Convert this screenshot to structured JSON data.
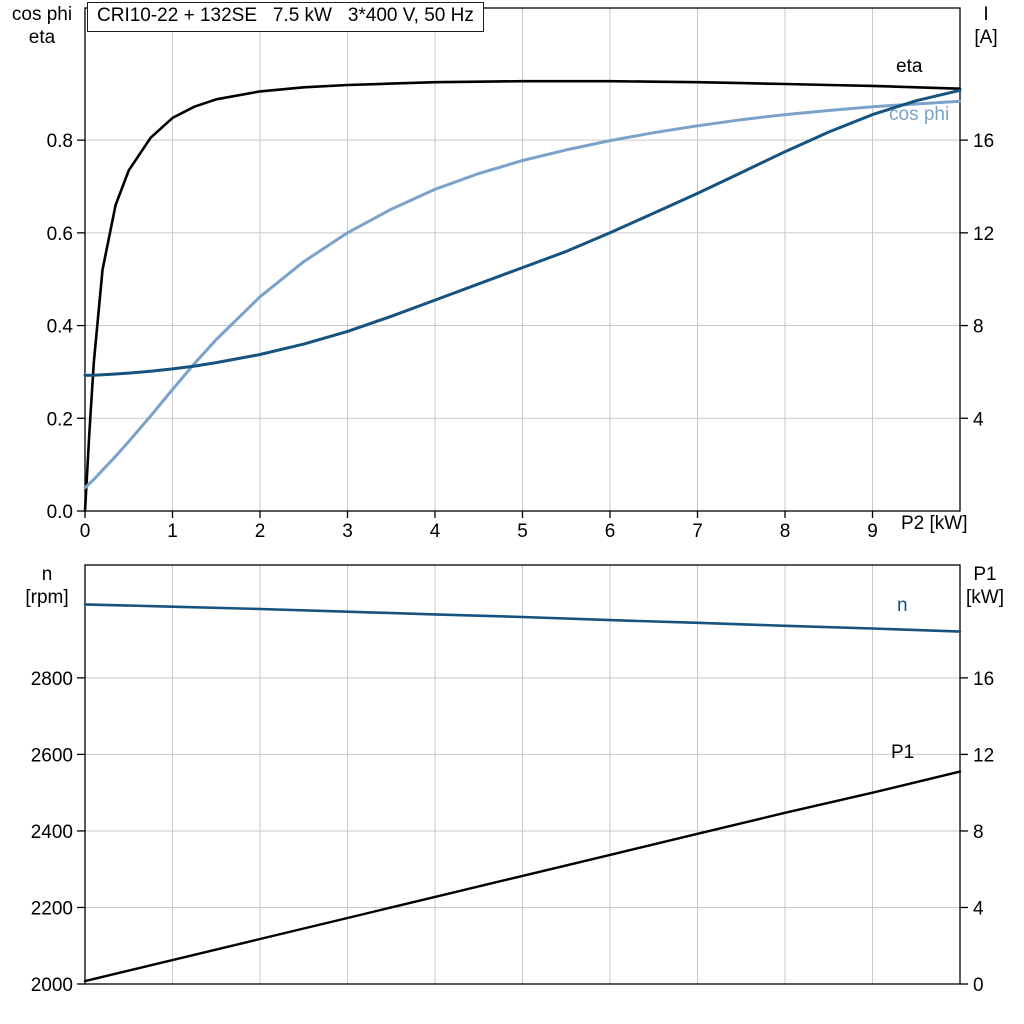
{
  "colors": {
    "eta": "#000000",
    "cos_phi": "#7ba3c9",
    "current": "#16537f",
    "speed": "#16537f",
    "p1": "#000000",
    "grid": "#c9c9c9",
    "axis": "#000000",
    "text": "#000000"
  },
  "chart_data": [
    {
      "type": "line",
      "name": "efficiency-current-chart",
      "title": "CRI10-22 + 132SE   7.5 kW   3*400 V, 50 Hz",
      "x_axis": {
        "title": "P2 [kW]",
        "range": [
          0,
          10
        ],
        "tick_values": [
          0,
          1,
          2,
          3,
          4,
          5,
          6,
          7,
          8,
          9
        ],
        "tick_labels": [
          "0",
          "1",
          "2",
          "3",
          "4",
          "5",
          "6",
          "7",
          "8",
          "9"
        ],
        "grid_values": [
          1,
          2,
          3,
          4,
          5,
          6,
          7,
          8,
          9
        ]
      },
      "y_left": {
        "title_lines": [
          "cos phi",
          "eta"
        ],
        "range": [
          0,
          1.085
        ],
        "tick_values": [
          0,
          0.2,
          0.4,
          0.6,
          0.8
        ],
        "tick_labels": [
          "0.0",
          "0.2",
          "0.4",
          "0.6",
          "0.8"
        ],
        "grid_values": [
          0.2,
          0.4,
          0.6,
          0.8
        ]
      },
      "y_right": {
        "title_lines": [
          "I",
          "[A]"
        ],
        "range": [
          0,
          21.7
        ],
        "tick_values": [
          4,
          8,
          12,
          16
        ],
        "tick_labels": [
          "4",
          "8",
          "12",
          "16"
        ]
      },
      "series": [
        {
          "name": "eta",
          "label": "eta",
          "axis": "left",
          "color_key": "eta",
          "width": 2.6,
          "x": [
            0,
            0.05,
            0.1,
            0.2,
            0.35,
            0.5,
            0.75,
            1,
            1.25,
            1.5,
            2,
            2.5,
            3,
            3.5,
            4,
            4.5,
            5,
            5.5,
            6,
            6.5,
            7,
            7.5,
            8,
            8.5,
            9,
            9.5,
            10
          ],
          "y": [
            0,
            0.17,
            0.32,
            0.52,
            0.66,
            0.735,
            0.805,
            0.848,
            0.872,
            0.888,
            0.905,
            0.914,
            0.919,
            0.922,
            0.925,
            0.926,
            0.927,
            0.927,
            0.927,
            0.926,
            0.925,
            0.923,
            0.921,
            0.919,
            0.917,
            0.914,
            0.911
          ]
        },
        {
          "name": "cos-phi",
          "label": "cos phi",
          "axis": "left",
          "color_key": "cos_phi",
          "width": 3,
          "x": [
            0,
            0.05,
            0.1,
            0.2,
            0.35,
            0.5,
            0.75,
            1,
            1.25,
            1.5,
            2,
            2.5,
            3,
            3.5,
            4,
            4.5,
            5,
            5.5,
            6,
            6.5,
            7,
            7.5,
            8,
            8.5,
            9,
            9.5,
            10
          ],
          "y": [
            0.05,
            0.059,
            0.068,
            0.088,
            0.118,
            0.15,
            0.205,
            0.262,
            0.318,
            0.37,
            0.462,
            0.538,
            0.6,
            0.651,
            0.694,
            0.728,
            0.756,
            0.779,
            0.799,
            0.816,
            0.831,
            0.844,
            0.855,
            0.864,
            0.872,
            0.878,
            0.884
          ]
        },
        {
          "name": "current",
          "label": "",
          "axis": "right",
          "color_key": "current",
          "width": 3,
          "x": [
            0,
            0.05,
            0.1,
            0.2,
            0.35,
            0.5,
            0.75,
            1,
            1.25,
            1.5,
            2,
            2.5,
            3,
            3.5,
            4,
            4.5,
            5,
            5.5,
            6,
            6.5,
            7,
            7.5,
            8,
            8.5,
            9,
            9.5,
            10
          ],
          "y": [
            5.85,
            5.855,
            5.86,
            5.88,
            5.91,
            5.95,
            6.03,
            6.13,
            6.25,
            6.4,
            6.75,
            7.2,
            7.75,
            8.4,
            9.1,
            9.8,
            10.5,
            11.2,
            12.0,
            12.85,
            13.7,
            14.6,
            15.5,
            16.35,
            17.1,
            17.7,
            18.15
          ]
        }
      ]
    },
    {
      "type": "line",
      "name": "speed-power-chart",
      "x_axis": {
        "title": "",
        "range": [
          0,
          10
        ],
        "tick_values": [],
        "tick_labels": [],
        "grid_values": [
          1,
          2,
          3,
          4,
          5,
          6,
          7,
          8,
          9
        ]
      },
      "y_left": {
        "title_lines": [
          "n",
          "[rpm]"
        ],
        "range": [
          2000,
          3095
        ],
        "tick_values": [
          2000,
          2200,
          2400,
          2600,
          2800
        ],
        "tick_labels": [
          "2000",
          "2200",
          "2400",
          "2600",
          "2800"
        ],
        "grid_values": [
          2200,
          2400,
          2600,
          2800
        ]
      },
      "y_right": {
        "title_lines": [
          "P1",
          "[kW]"
        ],
        "range": [
          0,
          21.9
        ],
        "tick_values": [
          0,
          4,
          8,
          12,
          16
        ],
        "tick_labels": [
          "0",
          "4",
          "8",
          "12",
          "16"
        ]
      },
      "series": [
        {
          "name": "speed",
          "label": "n",
          "axis": "left",
          "color_key": "speed",
          "width": 2.6,
          "x": [
            0,
            1,
            2,
            3,
            4,
            5,
            6,
            7,
            8,
            9,
            10
          ],
          "y": [
            2992,
            2986,
            2980,
            2973,
            2966,
            2959,
            2951,
            2944,
            2936,
            2929,
            2921
          ]
        },
        {
          "name": "p1",
          "label": "P1",
          "axis": "right",
          "color_key": "p1",
          "width": 2.4,
          "x": [
            0,
            1,
            2,
            3,
            4,
            5,
            6,
            7,
            8,
            9,
            10
          ],
          "y": [
            0.15,
            1.25,
            2.35,
            3.45,
            4.55,
            5.65,
            6.75,
            7.85,
            8.95,
            10.0,
            11.1
          ]
        }
      ]
    }
  ]
}
